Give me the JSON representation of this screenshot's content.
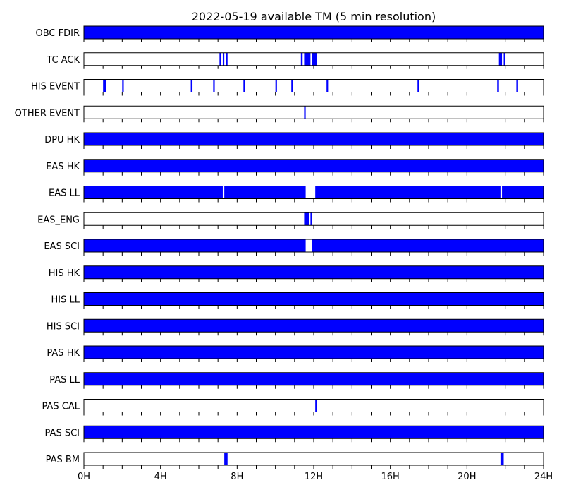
{
  "chart_data": {
    "type": "timeline",
    "title": "2022-05-19 available TM (5 min resolution)",
    "x_unit": "hours",
    "xlim": [
      0,
      24
    ],
    "x_ticks": [
      0,
      4,
      8,
      12,
      16,
      20,
      24
    ],
    "x_tick_labels": [
      "0H",
      "4H",
      "8H",
      "12H",
      "16H",
      "20H",
      "24H"
    ],
    "minor_tick_step_hours": 1,
    "bar_color": "#0000ff",
    "empty_color": "#ffffff",
    "border_color": "#000000",
    "series": [
      {
        "name": "OBC FDIR",
        "intervals": [
          [
            0,
            24
          ]
        ]
      },
      {
        "name": "TC ACK",
        "intervals": [
          [
            7.08,
            7.17
          ],
          [
            7.25,
            7.33
          ],
          [
            7.42,
            7.5
          ],
          [
            11.33,
            11.42
          ],
          [
            11.5,
            11.83
          ],
          [
            11.92,
            12.17
          ],
          [
            21.67,
            21.83
          ],
          [
            21.92,
            22.0
          ]
        ]
      },
      {
        "name": "HIS EVENT",
        "intervals": [
          [
            1.0,
            1.17
          ],
          [
            2.0,
            2.08
          ],
          [
            5.58,
            5.67
          ],
          [
            6.75,
            6.83
          ],
          [
            8.33,
            8.42
          ],
          [
            10.0,
            10.08
          ],
          [
            10.83,
            10.92
          ],
          [
            12.67,
            12.75
          ],
          [
            17.42,
            17.5
          ],
          [
            21.58,
            21.67
          ],
          [
            22.58,
            22.67
          ]
        ]
      },
      {
        "name": "OTHER EVENT",
        "intervals": [
          [
            11.5,
            11.58
          ]
        ]
      },
      {
        "name": "DPU HK",
        "intervals": [
          [
            0,
            24
          ]
        ]
      },
      {
        "name": "EAS HK",
        "intervals": [
          [
            0,
            24
          ]
        ]
      },
      {
        "name": "EAS LL",
        "intervals": [
          [
            0,
            7.25
          ],
          [
            7.33,
            11.58
          ],
          [
            12.08,
            21.75
          ],
          [
            21.83,
            24
          ]
        ]
      },
      {
        "name": "EAS_ENG",
        "intervals": [
          [
            11.5,
            11.75
          ],
          [
            11.83,
            11.92
          ]
        ]
      },
      {
        "name": "EAS SCI",
        "intervals": [
          [
            0,
            11.58
          ],
          [
            11.92,
            24
          ]
        ]
      },
      {
        "name": "HIS HK",
        "intervals": [
          [
            0,
            24
          ]
        ]
      },
      {
        "name": "HIS LL",
        "intervals": [
          [
            0,
            24
          ]
        ]
      },
      {
        "name": "HIS SCI",
        "intervals": [
          [
            0,
            24
          ]
        ]
      },
      {
        "name": "PAS HK",
        "intervals": [
          [
            0,
            24
          ]
        ]
      },
      {
        "name": "PAS LL",
        "intervals": [
          [
            0,
            24
          ]
        ]
      },
      {
        "name": "PAS CAL",
        "intervals": [
          [
            12.08,
            12.17
          ]
        ]
      },
      {
        "name": "PAS SCI",
        "intervals": [
          [
            0,
            24
          ]
        ]
      },
      {
        "name": "PAS BM",
        "intervals": [
          [
            7.33,
            7.5
          ],
          [
            21.75,
            21.92
          ]
        ]
      }
    ]
  }
}
